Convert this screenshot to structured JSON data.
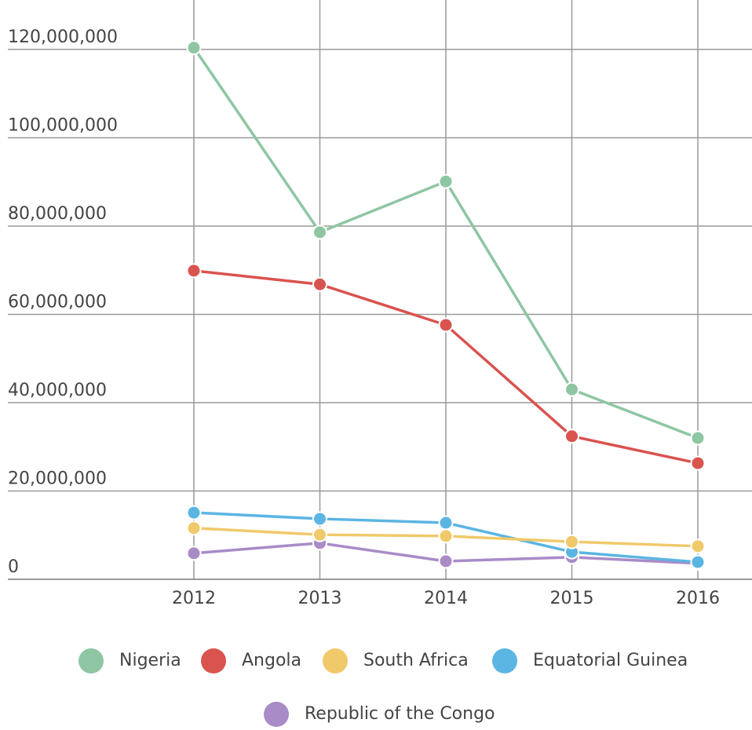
{
  "chart_data": {
    "type": "line",
    "categories": [
      "2012",
      "2013",
      "2014",
      "2015",
      "2016"
    ],
    "series": [
      {
        "name": "Nigeria",
        "color": "#8ec6a3",
        "values": [
          120400000,
          78600000,
          90100000,
          43000000,
          32000000
        ]
      },
      {
        "name": "Angola",
        "color": "#d9534f",
        "values": [
          69900000,
          66800000,
          57600000,
          32400000,
          26300000
        ]
      },
      {
        "name": "South Africa",
        "color": "#f0c96a",
        "values": [
          11600000,
          10100000,
          9800000,
          8500000,
          7500000
        ]
      },
      {
        "name": "Equatorial Guinea",
        "color": "#5bb5e3",
        "values": [
          15100000,
          13700000,
          12800000,
          6200000,
          3900000
        ]
      },
      {
        "name": "Republic of the Congo",
        "color": "#a98bc8",
        "values": [
          5900000,
          8200000,
          4100000,
          5000000,
          3600000
        ]
      }
    ],
    "ylim": [
      0,
      130000000
    ],
    "yticks": [
      0,
      {
        "value": 20000000,
        "label": "20,000,000"
      },
      {
        "value": 40000000,
        "label": "40,000,000"
      },
      {
        "value": 60000000,
        "label": "60,000,000"
      },
      {
        "value": 80000000,
        "label": "80,000,000"
      },
      {
        "value": 100000000,
        "label": "100,000,000"
      },
      {
        "value": 120000000,
        "label": "120,000,000"
      }
    ],
    "grid": true
  }
}
